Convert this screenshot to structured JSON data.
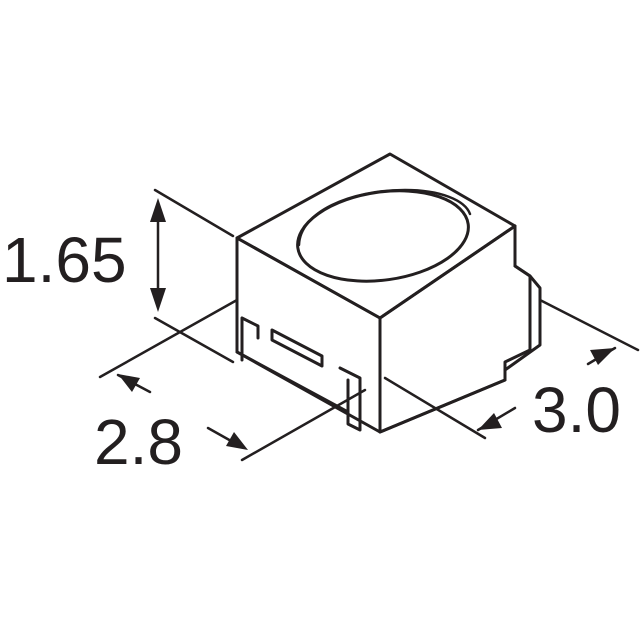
{
  "dimensions": {
    "height": "1.65",
    "width": "2.8",
    "depth": "3.0"
  },
  "colors": {
    "ink": "#231f20",
    "background": "#ffffff"
  }
}
